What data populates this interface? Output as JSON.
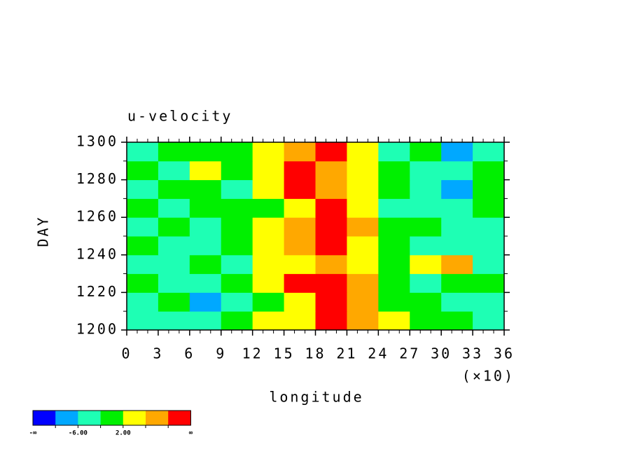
{
  "chart_data": {
    "type": "heatmap",
    "title": "u-velocity",
    "x_label": "longitude",
    "y_label": "DAY",
    "x_multiplier_label": "(×10)",
    "x": [
      15,
      45,
      75,
      105,
      135,
      165,
      195,
      225,
      255,
      285,
      315,
      345
    ],
    "y": [
      1205,
      1215,
      1225,
      1235,
      1245,
      1255,
      1265,
      1275,
      1285,
      1295
    ],
    "z": [
      [
        -2,
        -4,
        -2,
        0,
        3,
        6,
        11,
        7,
        3,
        1,
        -1,
        -3
      ],
      [
        -3,
        -1,
        -6,
        -2,
        1,
        5,
        12,
        8,
        2,
        0,
        -2,
        -4
      ],
      [
        -1,
        -4,
        -2,
        1,
        4,
        11,
        12,
        7,
        1,
        -2,
        0,
        -1
      ],
      [
        -4,
        -2,
        0,
        -3,
        3,
        5,
        9,
        4,
        0,
        3,
        7,
        -2
      ],
      [
        -1,
        -3,
        -2,
        0,
        4,
        10,
        12,
        6,
        -1,
        -4,
        -2,
        -3
      ],
      [
        -2,
        0,
        -4,
        -1,
        3,
        7,
        11,
        8,
        2,
        -1,
        -3,
        -2
      ],
      [
        0,
        -3,
        -1,
        1,
        2,
        6,
        12,
        5,
        -2,
        -5,
        -2,
        -1
      ],
      [
        -3,
        -1,
        0,
        -2,
        5,
        11,
        9,
        4,
        0,
        -3,
        -7,
        -1
      ],
      [
        1,
        -2,
        3,
        0,
        4,
        12,
        8,
        3,
        -1,
        -4,
        -2,
        0
      ],
      [
        -2,
        0,
        -1,
        2,
        3,
        10,
        11,
        5,
        -3,
        -1,
        -6,
        -2
      ]
    ],
    "xlim": [
      0,
      360
    ],
    "ylim": [
      1200,
      1300
    ],
    "xticks": [
      {
        "value": 0,
        "label": "0"
      },
      {
        "value": 30,
        "label": "3"
      },
      {
        "value": 60,
        "label": "6"
      },
      {
        "value": 90,
        "label": "9"
      },
      {
        "value": 120,
        "label": "12"
      },
      {
        "value": 150,
        "label": "15"
      },
      {
        "value": 180,
        "label": "18"
      },
      {
        "value": 210,
        "label": "21"
      },
      {
        "value": 240,
        "label": "24"
      },
      {
        "value": 270,
        "label": "27"
      },
      {
        "value": 300,
        "label": "30"
      },
      {
        "value": 330,
        "label": "33"
      },
      {
        "value": 360,
        "label": "36"
      }
    ],
    "xticks_minor": [
      10,
      20,
      40,
      50,
      70,
      80,
      100,
      110,
      130,
      140,
      160,
      170,
      190,
      200,
      220,
      230,
      250,
      260,
      280,
      290,
      310,
      320,
      340,
      350
    ],
    "yticks": [
      1200,
      1220,
      1240,
      1260,
      1280,
      1300
    ],
    "yticks_minor": [
      1210,
      1230,
      1250,
      1270,
      1290
    ],
    "colorbar": {
      "levels": [
        -10,
        -6,
        -2,
        2,
        6,
        10
      ],
      "colors": [
        "#0000ff",
        "#00a8ff",
        "#1effb4",
        "#00f000",
        "#ffff00",
        "#ffa800",
        "#ff0000"
      ],
      "edge_labels": [
        "-∞",
        null,
        "-6.00",
        null,
        "2.00",
        null,
        null,
        "∞"
      ]
    }
  }
}
